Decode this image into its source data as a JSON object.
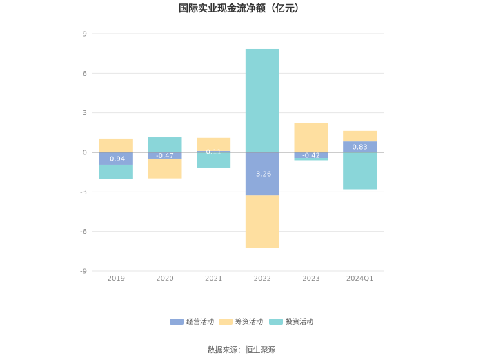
{
  "chart_data": {
    "type": "bar",
    "stacked": true,
    "title": "国际实业现金流净额（亿元）",
    "categories": [
      "2019",
      "2020",
      "2021",
      "2022",
      "2023",
      "2024Q1"
    ],
    "series": [
      {
        "name": "经营活动",
        "color": "#8eaadb",
        "values": [
          -0.94,
          -0.47,
          0.11,
          -3.26,
          -0.42,
          0.83
        ]
      },
      {
        "name": "筹资活动",
        "color": "#fedfa0",
        "values": [
          1.05,
          -1.5,
          1.0,
          -4.0,
          2.25,
          0.8
        ]
      },
      {
        "name": "投资活动",
        "color": "#8ad6d9",
        "values": [
          -1.05,
          1.15,
          -1.15,
          7.85,
          -0.18,
          -2.8
        ]
      }
    ],
    "data_labels": [
      "-0.94",
      "-0.47",
      "0.11",
      "-3.26",
      "-0.42",
      "0.83"
    ],
    "yticks": [
      9,
      6,
      3,
      0,
      -3,
      -6,
      -9
    ],
    "ylim": [
      -9,
      9
    ],
    "grid": true,
    "legend_position": "bottom"
  },
  "source_text": "数据来源：恒生聚源"
}
